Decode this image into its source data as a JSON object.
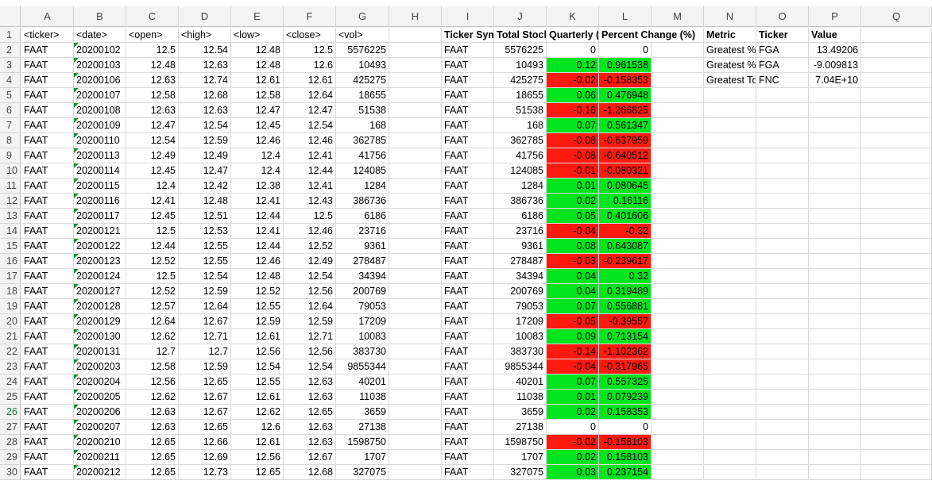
{
  "sheet": {
    "columns": [
      "A",
      "B",
      "C",
      "D",
      "E",
      "F",
      "G",
      "H",
      "I",
      "J",
      "K",
      "L",
      "M",
      "N",
      "O",
      "P",
      "Q"
    ],
    "header_row": {
      "A": "<ticker>",
      "B": "<date>",
      "C": "<open>",
      "D": "<high>",
      "E": "<low>",
      "F": "<close>",
      "G": "<vol>",
      "I": "Ticker Sym",
      "J": "Total Stock",
      "K": "Quarterly (",
      "L": "Percent Change (%)",
      "N": "Metric",
      "O": "Ticker",
      "P": "Value"
    },
    "rows": [
      {
        "n": "2",
        "A": "FAAT",
        "B": "20200102",
        "C": "12.5",
        "D": "12.54",
        "E": "12.48",
        "F": "12.5",
        "G": "5576225",
        "I": "FAAT",
        "J": "5576225",
        "K": "0",
        "L": "0",
        "kc": "white"
      },
      {
        "n": "3",
        "A": "FAAT",
        "B": "20200103",
        "C": "12.48",
        "D": "12.63",
        "E": "12.48",
        "F": "12.6",
        "G": "10493",
        "I": "FAAT",
        "J": "10493",
        "K": "0.12",
        "L": "0.961538",
        "kc": "green"
      },
      {
        "n": "4",
        "A": "FAAT",
        "B": "20200106",
        "C": "12.63",
        "D": "12.74",
        "E": "12.61",
        "F": "12.61",
        "G": "425275",
        "I": "FAAT",
        "J": "425275",
        "K": "-0.02",
        "L": "-0.158353",
        "kc": "red"
      },
      {
        "n": "5",
        "A": "FAAT",
        "B": "20200107",
        "C": "12.58",
        "D": "12.68",
        "E": "12.58",
        "F": "12.64",
        "G": "18655",
        "I": "FAAT",
        "J": "18655",
        "K": "0.06",
        "L": "0.476948",
        "kc": "green"
      },
      {
        "n": "6",
        "A": "FAAT",
        "B": "20200108",
        "C": "12.63",
        "D": "12.63",
        "E": "12.47",
        "F": "12.47",
        "G": "51538",
        "I": "FAAT",
        "J": "51538",
        "K": "-0.16",
        "L": "-1.266825",
        "kc": "red"
      },
      {
        "n": "7",
        "A": "FAAT",
        "B": "20200109",
        "C": "12.47",
        "D": "12.54",
        "E": "12.45",
        "F": "12.54",
        "G": "168",
        "I": "FAAT",
        "J": "168",
        "K": "0.07",
        "L": "0.561347",
        "kc": "green"
      },
      {
        "n": "8",
        "A": "FAAT",
        "B": "20200110",
        "C": "12.54",
        "D": "12.59",
        "E": "12.46",
        "F": "12.46",
        "G": "362785",
        "I": "FAAT",
        "J": "362785",
        "K": "-0.08",
        "L": "-0.637959",
        "kc": "red"
      },
      {
        "n": "9",
        "A": "FAAT",
        "B": "20200113",
        "C": "12.49",
        "D": "12.49",
        "E": "12.4",
        "F": "12.41",
        "G": "41756",
        "I": "FAAT",
        "J": "41756",
        "K": "-0.08",
        "L": "-0.640512",
        "kc": "red"
      },
      {
        "n": "10",
        "A": "FAAT",
        "B": "20200114",
        "C": "12.45",
        "D": "12.47",
        "E": "12.4",
        "F": "12.44",
        "G": "124085",
        "I": "FAAT",
        "J": "124085",
        "K": "-0.01",
        "L": "-0.080321",
        "kc": "red"
      },
      {
        "n": "11",
        "A": "FAAT",
        "B": "20200115",
        "C": "12.4",
        "D": "12.42",
        "E": "12.38",
        "F": "12.41",
        "G": "1284",
        "I": "FAAT",
        "J": "1284",
        "K": "0.01",
        "L": "0.080645",
        "kc": "green"
      },
      {
        "n": "12",
        "A": "FAAT",
        "B": "20200116",
        "C": "12.41",
        "D": "12.48",
        "E": "12.41",
        "F": "12.43",
        "G": "386736",
        "I": "FAAT",
        "J": "386736",
        "K": "0.02",
        "L": "0.16116",
        "kc": "green"
      },
      {
        "n": "13",
        "A": "FAAT",
        "B": "20200117",
        "C": "12.45",
        "D": "12.51",
        "E": "12.44",
        "F": "12.5",
        "G": "6186",
        "I": "FAAT",
        "J": "6186",
        "K": "0.05",
        "L": "0.401606",
        "kc": "green"
      },
      {
        "n": "14",
        "A": "FAAT",
        "B": "20200121",
        "C": "12.5",
        "D": "12.53",
        "E": "12.41",
        "F": "12.46",
        "G": "23716",
        "I": "FAAT",
        "J": "23716",
        "K": "-0.04",
        "L": "-0.32",
        "kc": "red"
      },
      {
        "n": "15",
        "A": "FAAT",
        "B": "20200122",
        "C": "12.44",
        "D": "12.55",
        "E": "12.44",
        "F": "12.52",
        "G": "9361",
        "I": "FAAT",
        "J": "9361",
        "K": "0.08",
        "L": "0.643087",
        "kc": "green"
      },
      {
        "n": "16",
        "A": "FAAT",
        "B": "20200123",
        "C": "12.52",
        "D": "12.55",
        "E": "12.46",
        "F": "12.49",
        "G": "278487",
        "I": "FAAT",
        "J": "278487",
        "K": "-0.03",
        "L": "-0.239617",
        "kc": "red"
      },
      {
        "n": "17",
        "A": "FAAT",
        "B": "20200124",
        "C": "12.5",
        "D": "12.54",
        "E": "12.48",
        "F": "12.54",
        "G": "34394",
        "I": "FAAT",
        "J": "34394",
        "K": "0.04",
        "L": "0.32",
        "kc": "green"
      },
      {
        "n": "18",
        "A": "FAAT",
        "B": "20200127",
        "C": "12.52",
        "D": "12.59",
        "E": "12.52",
        "F": "12.56",
        "G": "200769",
        "I": "FAAT",
        "J": "200769",
        "K": "0.04",
        "L": "0.319489",
        "kc": "green"
      },
      {
        "n": "19",
        "A": "FAAT",
        "B": "20200128",
        "C": "12.57",
        "D": "12.64",
        "E": "12.55",
        "F": "12.64",
        "G": "79053",
        "I": "FAAT",
        "J": "79053",
        "K": "0.07",
        "L": "0.556881",
        "kc": "green"
      },
      {
        "n": "20",
        "A": "FAAT",
        "B": "20200129",
        "C": "12.64",
        "D": "12.67",
        "E": "12.59",
        "F": "12.59",
        "G": "17209",
        "I": "FAAT",
        "J": "17209",
        "K": "-0.05",
        "L": "-0.39557",
        "kc": "red"
      },
      {
        "n": "21",
        "A": "FAAT",
        "B": "20200130",
        "C": "12.62",
        "D": "12.71",
        "E": "12.61",
        "F": "12.71",
        "G": "10083",
        "I": "FAAT",
        "J": "10083",
        "K": "0.09",
        "L": "0.713154",
        "kc": "green"
      },
      {
        "n": "22",
        "A": "FAAT",
        "B": "20200131",
        "C": "12.7",
        "D": "12.7",
        "E": "12.56",
        "F": "12.56",
        "G": "383730",
        "I": "FAAT",
        "J": "383730",
        "K": "-0.14",
        "L": "-1.102362",
        "kc": "red"
      },
      {
        "n": "23",
        "A": "FAAT",
        "B": "20200203",
        "C": "12.58",
        "D": "12.59",
        "E": "12.54",
        "F": "12.54",
        "G": "9855344",
        "I": "FAAT",
        "J": "9855344",
        "K": "-0.04",
        "L": "-0.317965",
        "kc": "red"
      },
      {
        "n": "24",
        "A": "FAAT",
        "B": "20200204",
        "C": "12.56",
        "D": "12.65",
        "E": "12.55",
        "F": "12.63",
        "G": "40201",
        "I": "FAAT",
        "J": "40201",
        "K": "0.07",
        "L": "0.557325",
        "kc": "green"
      },
      {
        "n": "25",
        "A": "FAAT",
        "B": "20200205",
        "C": "12.62",
        "D": "12.67",
        "E": "12.61",
        "F": "12.63",
        "G": "11038",
        "I": "FAAT",
        "J": "11038",
        "K": "0.01",
        "L": "0.079239",
        "kc": "green"
      },
      {
        "n": "26",
        "A": "FAAT",
        "B": "20200206",
        "C": "12.63",
        "D": "12.67",
        "E": "12.62",
        "F": "12.65",
        "G": "3659",
        "I": "FAAT",
        "J": "3659",
        "K": "0.02",
        "L": "0.158353",
        "kc": "green"
      },
      {
        "n": "27",
        "A": "FAAT",
        "B": "20200207",
        "C": "12.63",
        "D": "12.65",
        "E": "12.6",
        "F": "12.63",
        "G": "27138",
        "I": "FAAT",
        "J": "27138",
        "K": "0",
        "L": "0",
        "kc": "white"
      },
      {
        "n": "28",
        "A": "FAAT",
        "B": "20200210",
        "C": "12.65",
        "D": "12.66",
        "E": "12.61",
        "F": "12.63",
        "G": "1598750",
        "I": "FAAT",
        "J": "1598750",
        "K": "-0.02",
        "L": "-0.158103",
        "kc": "red"
      },
      {
        "n": "29",
        "A": "FAAT",
        "B": "20200211",
        "C": "12.65",
        "D": "12.69",
        "E": "12.56",
        "F": "12.67",
        "G": "1707",
        "I": "FAAT",
        "J": "1707",
        "K": "0.02",
        "L": "0.158103",
        "kc": "green"
      },
      {
        "n": "30",
        "A": "FAAT",
        "B": "20200212",
        "C": "12.65",
        "D": "12.73",
        "E": "12.65",
        "F": "12.68",
        "G": "327075",
        "I": "FAAT",
        "J": "327075",
        "K": "0.03",
        "L": "0.237154",
        "kc": "green"
      }
    ],
    "summary": [
      {
        "metric": "Greatest %",
        "ticker": "FGA",
        "value": "13.49206"
      },
      {
        "metric": "Greatest %",
        "ticker": "FGA",
        "value": "-9.009813"
      },
      {
        "metric": "Greatest To",
        "ticker": "FNC",
        "value": "7.04E+10"
      }
    ],
    "selected_row": "26",
    "colors": {
      "positive": "#00e51f",
      "negative": "#ff1a0f",
      "header_bg": "#f3f3f3",
      "selection": "#1e6f3e"
    }
  }
}
